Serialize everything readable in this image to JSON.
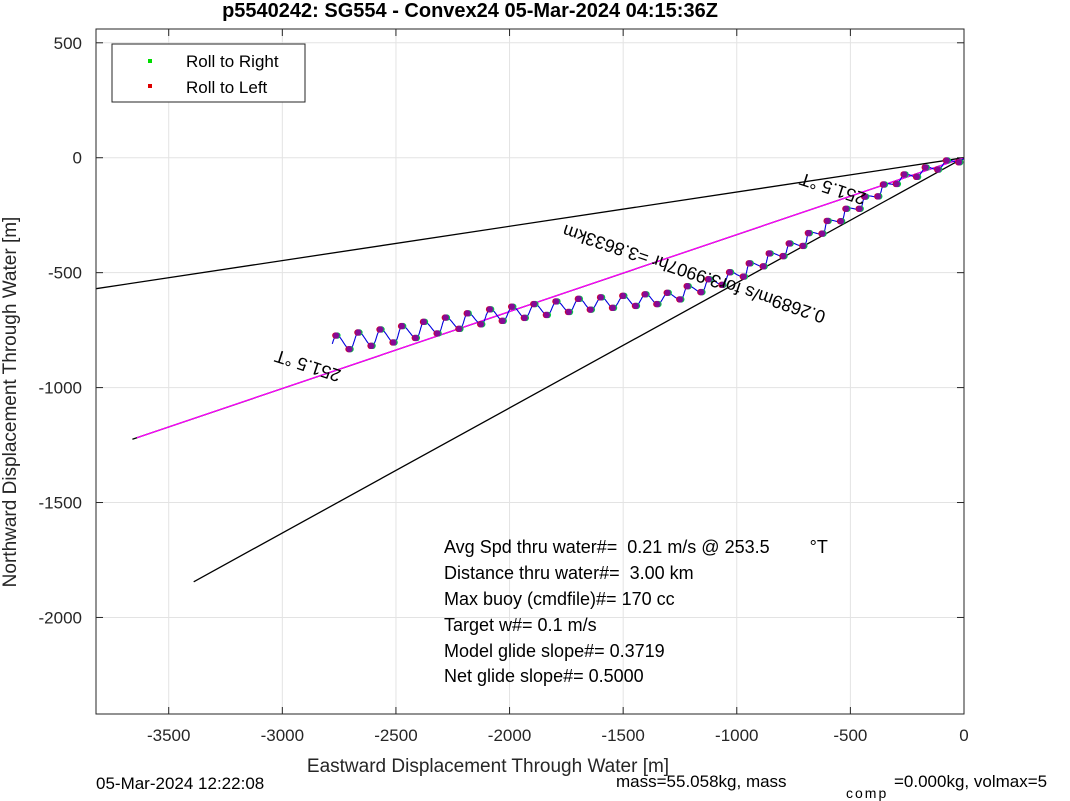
{
  "chart_data": {
    "type": "line",
    "title": "p5540242: SG554 - Convex24 05-Mar-2024 04:15:36Z",
    "xlabel": "Eastward Displacement Through Water [m]",
    "ylabel": "Northward Displacement Through Water [m]",
    "xlim": [
      -3820,
      0
    ],
    "ylim": [
      -2420,
      560
    ],
    "xticks": [
      -3500,
      -3000,
      -2500,
      -2000,
      -1500,
      -1000,
      -500,
      0
    ],
    "yticks": [
      500,
      0,
      -500,
      -1000,
      -1500,
      -2000
    ],
    "grid": true,
    "legend": {
      "placement": "top-left",
      "entries": [
        {
          "label": "Roll to Right",
          "color": "#00dd00"
        },
        {
          "label": "Roll to Left",
          "color": "#dd0000"
        }
      ]
    },
    "reference_lines": [
      {
        "color": "#000000",
        "points": [
          [
            0,
            0
          ],
          [
            -3820,
            -570
          ]
        ]
      },
      {
        "color": "#000000",
        "points": [
          [
            0,
            0
          ],
          [
            -3390,
            -1845
          ]
        ]
      },
      {
        "color": "#000000",
        "points": [
          [
            0,
            0
          ],
          [
            -3660,
            -1225
          ]
        ]
      },
      {
        "color": "#ff00ff",
        "points": [
          [
            0,
            0
          ],
          [
            -3640,
            -1218
          ]
        ]
      }
    ],
    "track": {
      "color": "#0000dd",
      "series_name": "glider track",
      "centerline": [
        [
          0,
          0
        ],
        [
          -300,
          -100
        ],
        [
          -700,
          -360
        ],
        [
          -1000,
          -510
        ],
        [
          -1300,
          -610
        ],
        [
          -1700,
          -640
        ],
        [
          -2100,
          -690
        ],
        [
          -2500,
          -770
        ],
        [
          -2780,
          -810
        ]
      ]
    },
    "annotations": [
      {
        "text": "251.5 °T",
        "x": -2880,
        "y": -880,
        "rotation_deg": 198
      },
      {
        "text": "251.5 °T",
        "x": -570,
        "y": -110,
        "rotation_deg": 198
      },
      {
        "text": "0.2689m/s for3.9907hr =3.8633km",
        "x": -1180,
        "y": -480,
        "rotation_deg": 198.5
      }
    ],
    "stats": [
      "Avg Spd thru water#=  0.21 m/s @ 253.5        °T",
      "Distance thru water#=  3.00 km",
      "Max buoy (cmdfile)#= 170 cc",
      "Target w#= 0.1 m/s",
      "Model glide slope#= 0.3719",
      "Net glide slope#= 0.5000"
    ]
  },
  "footer": {
    "timestamp": "05-Mar-2024 12:22:08",
    "mass_text": "mass=55.058kg, mass",
    "comp_subscript": "comp",
    "volmax_text": "=0.000kg, volmax=5"
  }
}
